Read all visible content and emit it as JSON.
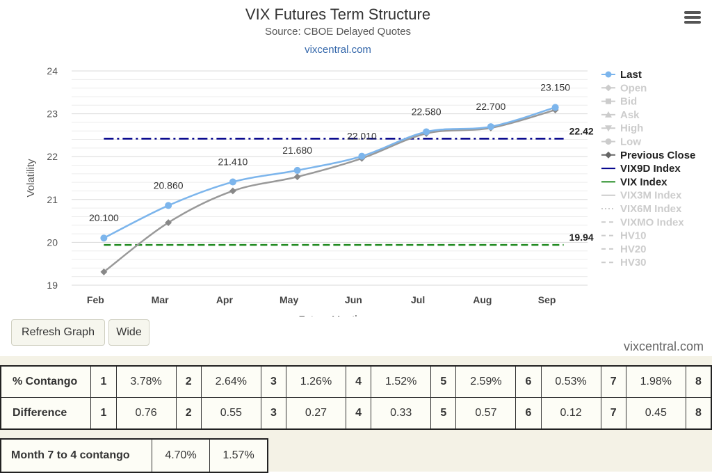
{
  "chart": {
    "title": "VIX Futures Term Structure",
    "subtitle": "Source: CBOE Delayed Quotes",
    "link": "vixcentral.com"
  },
  "chart_data": {
    "type": "line",
    "title": "VIX Futures Term Structure",
    "subtitle": "Source: CBOE Delayed Quotes",
    "xlabel": "Future Month",
    "ylabel": "Volatility",
    "ylim": [
      19,
      24
    ],
    "yticks": [
      19,
      20,
      21,
      22,
      23,
      24
    ],
    "categories": [
      "Feb",
      "Mar",
      "Apr",
      "May",
      "Jun",
      "Jul",
      "Aug",
      "Sep"
    ],
    "grid": true,
    "legend_position": "right",
    "series": [
      {
        "name": "Last",
        "values": [
          20.1,
          20.86,
          21.41,
          21.68,
          22.01,
          22.58,
          22.7,
          23.15
        ],
        "labels": [
          "20.100",
          "20.860",
          "21.410",
          "21.680",
          "22.010",
          "22.580",
          "22.700",
          "23.150"
        ],
        "color": "#7cb5ec"
      },
      {
        "name": "Previous Close",
        "values": [
          19.31,
          20.46,
          21.2,
          21.53,
          21.96,
          22.54,
          22.67,
          23.09
        ],
        "color": "#999999"
      }
    ],
    "reference_lines": [
      {
        "name": "VIX9D Index",
        "value": 22.42,
        "label": "22.42",
        "color": "#00008b",
        "style": "dashdot"
      },
      {
        "name": "VIX Index",
        "value": 19.94,
        "label": "19.94",
        "color": "#228b22",
        "style": "dash"
      }
    ],
    "legend": [
      {
        "name": "Last",
        "active": true,
        "symbol": "circle-line",
        "color": "#7cb5ec"
      },
      {
        "name": "Open",
        "active": false,
        "symbol": "diamond-line"
      },
      {
        "name": "Bid",
        "active": false,
        "symbol": "square-line"
      },
      {
        "name": "Ask",
        "active": false,
        "symbol": "triangle-line"
      },
      {
        "name": "High",
        "active": false,
        "symbol": "triangle-down-line"
      },
      {
        "name": "Low",
        "active": false,
        "symbol": "circle-line"
      },
      {
        "name": "Previous Close",
        "active": true,
        "symbol": "diamond-line",
        "color": "#666666"
      },
      {
        "name": "VIX9D Index",
        "active": true,
        "symbol": "line",
        "color": "#00008b"
      },
      {
        "name": "VIX Index",
        "active": true,
        "symbol": "line",
        "color": "#228b22"
      },
      {
        "name": "VIX3M Index",
        "active": false,
        "symbol": "line"
      },
      {
        "name": "VIX6M Index",
        "active": false,
        "symbol": "dotted"
      },
      {
        "name": "VIXMO Index",
        "active": false,
        "symbol": "dashed"
      },
      {
        "name": "HV10",
        "active": false,
        "symbol": "dashed"
      },
      {
        "name": "HV20",
        "active": false,
        "symbol": "dashed"
      },
      {
        "name": "HV30",
        "active": false,
        "symbol": "dashed"
      }
    ]
  },
  "buttons": {
    "refresh": "Refresh Graph",
    "wide": "Wide"
  },
  "watermark": "vixcentral.com",
  "contango_table": {
    "rows": [
      {
        "label": "% Contango",
        "cells": [
          "1",
          "3.78%",
          "2",
          "2.64%",
          "3",
          "1.26%",
          "4",
          "1.52%",
          "5",
          "2.59%",
          "6",
          "0.53%",
          "7",
          "1.98%",
          "8"
        ]
      },
      {
        "label": "Difference",
        "cells": [
          "1",
          "0.76",
          "2",
          "0.55",
          "3",
          "0.27",
          "4",
          "0.33",
          "5",
          "0.57",
          "6",
          "0.12",
          "7",
          "0.45",
          "8"
        ]
      }
    ]
  },
  "month_7_to_4": {
    "label": "Month 7 to 4 contango",
    "values": [
      "4.70%",
      "1.57%"
    ]
  },
  "colors": {
    "last": "#7cb5ec",
    "previous_close": "#999999",
    "vix9d": "#00008b",
    "vix": "#228b22",
    "inactive": "#cccccc"
  }
}
